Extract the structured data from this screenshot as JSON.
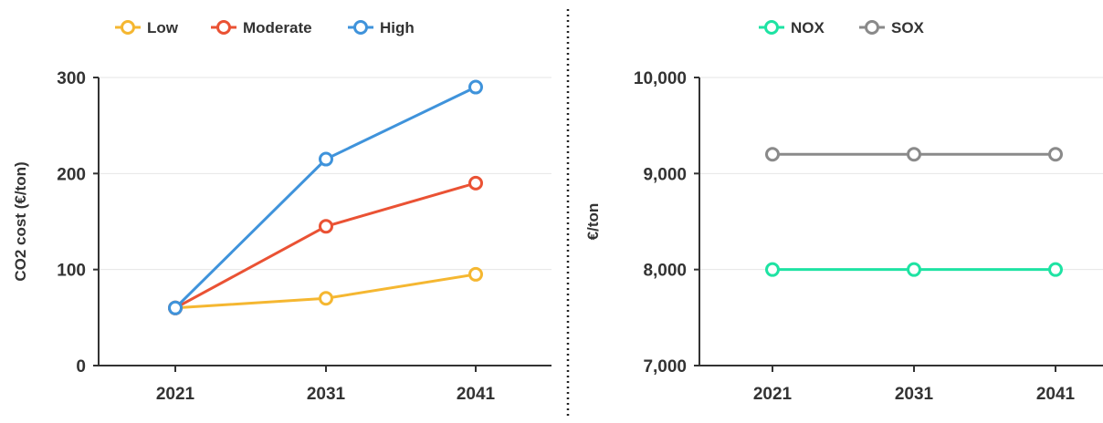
{
  "chart_data": [
    {
      "type": "line",
      "title": "",
      "xlabel": "",
      "ylabel": "CO2 cost (€/ton)",
      "categories": [
        "2021",
        "2031",
        "2041"
      ],
      "yticks": [
        "0",
        "100",
        "200",
        "300"
      ],
      "ylim": [
        0,
        300
      ],
      "grid": true,
      "legend_position": "top-left",
      "series": [
        {
          "name": "Low",
          "color": "#f5b731",
          "values": [
            60,
            70,
            95
          ]
        },
        {
          "name": "Moderate",
          "color": "#ea5234",
          "values": [
            60,
            145,
            190
          ]
        },
        {
          "name": "High",
          "color": "#3f93db",
          "values": [
            60,
            215,
            290
          ]
        }
      ]
    },
    {
      "type": "line",
      "title": "",
      "xlabel": "",
      "ylabel": "€/ton",
      "categories": [
        "2021",
        "2031",
        "2041"
      ],
      "yticks": [
        "7,000",
        "8,000",
        "9,000",
        "10,000"
      ],
      "ylim": [
        7000,
        10000
      ],
      "grid": true,
      "legend_position": "top-center",
      "series": [
        {
          "name": "NOX",
          "color": "#1ee3a3",
          "values": [
            8000,
            8000,
            8000
          ]
        },
        {
          "name": "SOX",
          "color": "#8a8a8a",
          "values": [
            9200,
            9200,
            9200
          ]
        }
      ]
    }
  ],
  "divider": {
    "style": "dotted",
    "color": "#222222"
  }
}
